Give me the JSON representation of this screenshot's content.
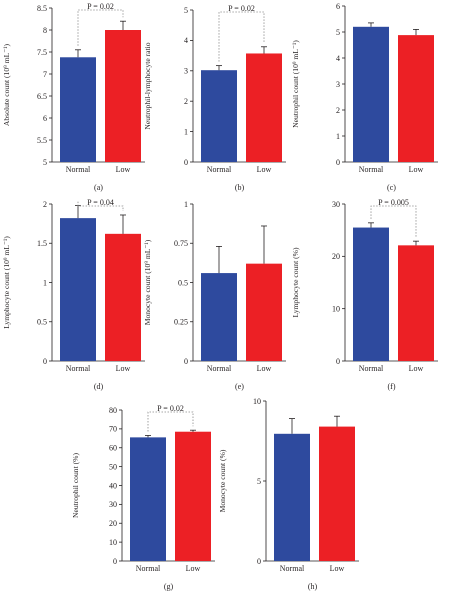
{
  "colors": {
    "normal": "#2e4a9e",
    "low": "#ec2025",
    "axis": "#231f20",
    "bracket": "#8a8a8a"
  },
  "chart_data": [
    {
      "panel": "(a)",
      "type": "bar",
      "categories": [
        "Normal",
        "Low"
      ],
      "values": [
        7.38,
        8.0
      ],
      "errors": [
        0.17,
        0.2
      ],
      "ylabel": "Absolute count (10⁹ mL⁻¹)",
      "ylim": [
        5,
        8.5
      ],
      "yticks": [
        "5",
        "5.5",
        "6",
        "6.5",
        "7",
        "7.5",
        "8",
        "8.5"
      ],
      "pvalue": "P = 0.02"
    },
    {
      "panel": "(b)",
      "type": "bar",
      "categories": [
        "Normal",
        "Low"
      ],
      "values": [
        3.02,
        3.57
      ],
      "errors": [
        0.15,
        0.22
      ],
      "ylabel": "Neutrophil-lymphocyte ratio",
      "ylim": [
        0,
        5
      ],
      "yticks": [
        "0",
        "1",
        "2",
        "3",
        "4",
        "5"
      ],
      "pvalue": "P = 0.02"
    },
    {
      "panel": "(c)",
      "type": "bar",
      "categories": [
        "Normal",
        "Low"
      ],
      "values": [
        5.2,
        4.88
      ],
      "errors": [
        0.15,
        0.22
      ],
      "ylabel": "Neutrophil count (10⁹ mL⁻¹)",
      "ylim": [
        0,
        6
      ],
      "yticks": [
        "0",
        "1",
        "2",
        "3",
        "4",
        "5",
        "6"
      ],
      "pvalue": ""
    },
    {
      "panel": "(d)",
      "type": "bar",
      "categories": [
        "Normal",
        "Low"
      ],
      "values": [
        1.82,
        1.62
      ],
      "errors": [
        0.16,
        0.24
      ],
      "ylabel": "Lymphocyte count (10⁹ mL⁻¹)",
      "ylim": [
        0,
        2
      ],
      "yticks": [
        "0",
        "0.5",
        "1",
        "1.5",
        "2"
      ],
      "pvalue": "P = 0.04"
    },
    {
      "panel": "(e)",
      "type": "bar",
      "categories": [
        "Normal",
        "Low"
      ],
      "values": [
        0.56,
        0.62
      ],
      "errors": [
        0.17,
        0.24
      ],
      "ylabel": "Monocyte count (10⁹ mL⁻¹)",
      "ylim": [
        0,
        1
      ],
      "yticks": [
        "0",
        "0.25",
        "0.5",
        "0.75",
        "1"
      ],
      "pvalue": ""
    },
    {
      "panel": "(f)",
      "type": "bar",
      "categories": [
        "Normal",
        "Low"
      ],
      "values": [
        25.5,
        22.1
      ],
      "errors": [
        0.9,
        0.8
      ],
      "ylabel": "Lymphocyte count (%)",
      "ylim": [
        0,
        30
      ],
      "yticks": [
        "0",
        "10",
        "20",
        "30"
      ],
      "pvalue": "P = 0.005"
    },
    {
      "panel": "(g)",
      "type": "bar",
      "categories": [
        "Normal",
        "Low"
      ],
      "values": [
        65.5,
        68.5
      ],
      "errors": [
        1.0,
        0.8
      ],
      "ylabel": "Neutrophil count (%)",
      "ylim": [
        0,
        80
      ],
      "yticks": [
        "0",
        "10",
        "20",
        "30",
        "40",
        "50",
        "60",
        "70",
        "80"
      ],
      "pvalue": "P = 0.02"
    },
    {
      "panel": "(h)",
      "type": "bar",
      "categories": [
        "Normal",
        "Low"
      ],
      "values": [
        7.95,
        8.4
      ],
      "errors": [
        0.95,
        0.65
      ],
      "ylabel": "Monocyte count (%)",
      "ylim": [
        0,
        10
      ],
      "yticks": [
        "0",
        "5",
        "10"
      ],
      "pvalue": ""
    }
  ]
}
